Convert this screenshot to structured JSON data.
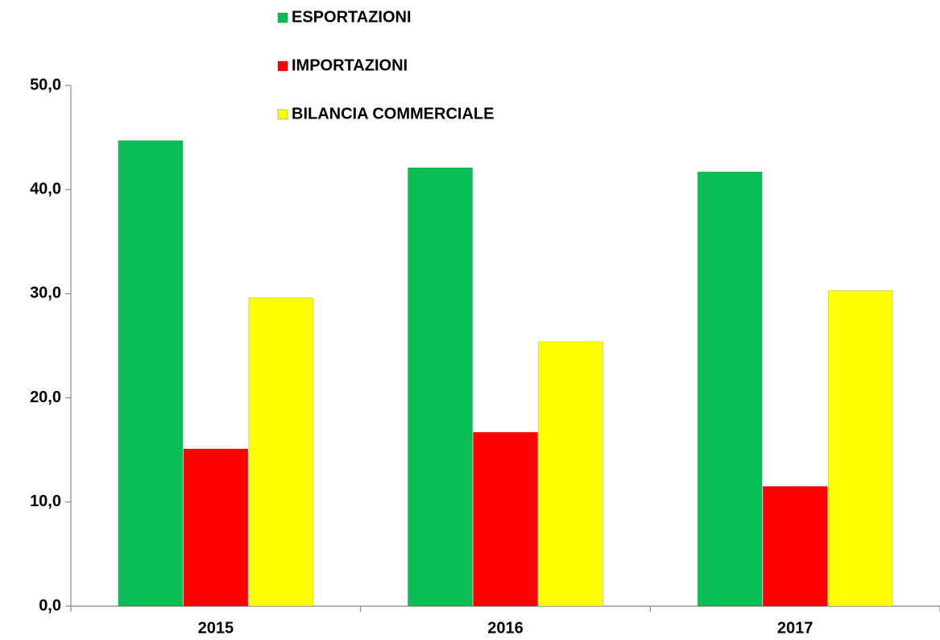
{
  "chart_data": {
    "type": "bar",
    "categories": [
      "2015",
      "2016",
      "2017"
    ],
    "series": [
      {
        "name": "ESPORTAZIONI",
        "color": "#09bf55",
        "values": [
          44.7,
          42.1,
          41.7
        ]
      },
      {
        "name": "IMPORTAZIONI",
        "color": "#ff0000",
        "values": [
          15.1,
          16.7,
          11.5
        ]
      },
      {
        "name": "BILANCIA COMMERCIALE",
        "color": "#ffff00",
        "values": [
          29.6,
          25.4,
          30.3
        ]
      }
    ],
    "ylim": [
      0,
      50
    ],
    "yticks": [
      {
        "value": 0,
        "label": "0,0"
      },
      {
        "value": 10,
        "label": "10,0"
      },
      {
        "value": 20,
        "label": "20,0"
      },
      {
        "value": 30,
        "label": "30,0"
      },
      {
        "value": 40,
        "label": "40,0"
      },
      {
        "value": 50,
        "label": "50,0"
      }
    ],
    "grid": false,
    "legend": "top"
  }
}
